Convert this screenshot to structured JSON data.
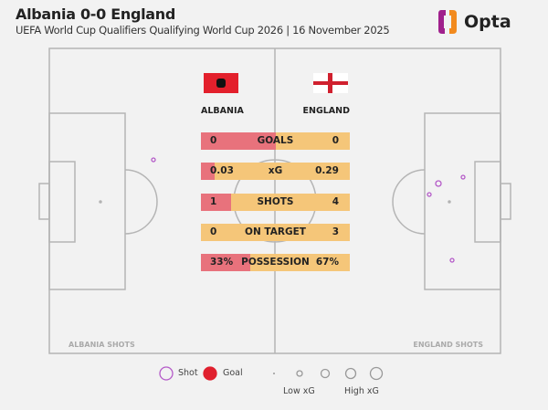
{
  "header": {
    "title": "Albania 0-0 England",
    "subtitle": "UEFA World Cup Qualifiers Qualifying World Cup 2026 | 16 November 2025",
    "logo": "Opta"
  },
  "colors": {
    "albania": "#e8727c",
    "england": "#f5c679",
    "shot": "#b45ac8",
    "goal": "#e0202e"
  },
  "teams": {
    "home": "ALBANIA",
    "away": "ENGLAND"
  },
  "pitch_labels": {
    "home": "ALBANIA SHOTS",
    "away": "ENGLAND SHOTS"
  },
  "chart_data": {
    "type": "table",
    "stats": [
      {
        "label": "GOALS",
        "home": "0",
        "away": "0",
        "home_share": 0.5
      },
      {
        "label": "xG",
        "home": "0.03",
        "away": "0.29",
        "home_share": 0.09
      },
      {
        "label": "SHOTS",
        "home": "1",
        "away": "4",
        "home_share": 0.2
      },
      {
        "label": "ON TARGET",
        "home": "0",
        "away": "3",
        "home_share": 0
      },
      {
        "label": "POSSESSION",
        "home": "33%",
        "away": "67%",
        "home_share": 0.33
      }
    ]
  },
  "legend": {
    "shot": "Shot",
    "goal": "Goal",
    "low_xg": "Low xG",
    "high_xg": "High xG"
  }
}
